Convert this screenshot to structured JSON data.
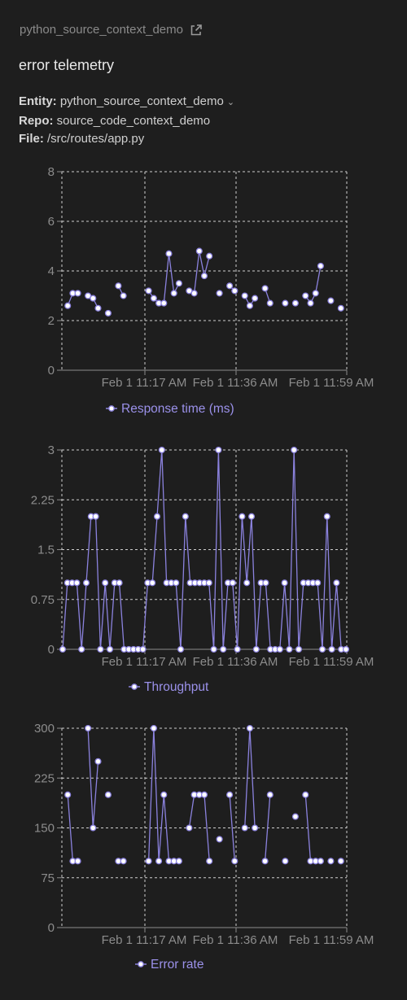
{
  "header": {
    "breadcrumb": "python_source_context_demo",
    "title": "error telemetry",
    "entity_label": "Entity:",
    "entity_value": "python_source_context_demo",
    "repo_label": "Repo:",
    "repo_value": "source_code_context_demo",
    "file_label": "File:",
    "file_value": "/src/routes/app.py"
  },
  "colors": {
    "series": "#8b82de",
    "grid": "#cfcfcf",
    "background": "#1e1e1e",
    "point_fill": "#ffffff"
  },
  "chart_data": [
    {
      "type": "line",
      "legend": "Response time (ms)",
      "x_tick_labels": [
        "Feb 1 11:17 AM",
        "Feb 1 11:36 AM",
        "Feb 1 11:59 AM"
      ],
      "ylim": [
        0,
        8
      ],
      "yticks": [
        0,
        2,
        4,
        6,
        8
      ],
      "grid": true,
      "legend_position": "bottom",
      "series": [
        {
          "values": [
            null,
            2.6,
            3.1,
            3.1,
            null,
            3.0,
            2.9,
            2.5,
            null,
            2.3,
            null,
            3.4,
            3.0,
            null,
            null,
            null,
            null,
            3.2,
            2.9,
            2.7,
            2.7,
            4.7,
            3.1,
            3.5,
            null,
            3.2,
            3.1,
            4.8,
            3.8,
            4.6,
            null,
            3.1,
            null,
            3.4,
            3.2,
            null,
            3.0,
            2.6,
            2.9,
            null,
            3.3,
            2.7,
            null,
            null,
            2.7,
            null,
            2.7,
            null,
            3.0,
            2.7,
            3.1,
            4.2,
            null,
            2.8,
            null,
            2.5,
            null
          ]
        }
      ]
    },
    {
      "type": "line",
      "legend": "Throughput",
      "x_tick_labels": [
        "Feb 1 11:17 AM",
        "Feb 1 11:36 AM",
        "Feb 1 11:59 AM"
      ],
      "ylim": [
        0,
        3
      ],
      "yticks": [
        0,
        0.75,
        1.5,
        2.25,
        3
      ],
      "ytick_labels": [
        "0",
        "0.75",
        "1.5",
        "2.25",
        "3"
      ],
      "grid": true,
      "legend_position": "bottom",
      "series": [
        {
          "values": [
            0,
            1,
            1,
            1,
            0,
            1,
            2,
            2,
            0,
            1,
            0,
            1,
            1,
            0,
            0,
            0,
            0,
            0,
            1,
            1,
            2,
            3,
            1,
            1,
            1,
            0,
            2,
            1,
            1,
            1,
            1,
            1,
            0,
            3,
            0,
            1,
            1,
            0,
            2,
            1,
            2,
            0,
            1,
            1,
            0,
            0,
            0,
            1,
            0,
            3,
            0,
            1,
            1,
            1,
            1,
            0,
            2,
            0,
            1,
            0,
            0
          ]
        }
      ]
    },
    {
      "type": "line",
      "legend": "Error rate",
      "x_tick_labels": [
        "Feb 1 11:17 AM",
        "Feb 1 11:36 AM",
        "Feb 1 11:59 AM"
      ],
      "ylim": [
        0,
        300
      ],
      "yticks": [
        0,
        75,
        150,
        225,
        300
      ],
      "grid": true,
      "legend_position": "bottom",
      "series": [
        {
          "values": [
            null,
            200,
            100,
            100,
            null,
            300,
            150,
            250,
            null,
            200,
            null,
            100,
            100,
            null,
            null,
            null,
            null,
            100,
            300,
            100,
            200,
            100,
            100,
            100,
            null,
            150,
            200,
            200,
            200,
            100,
            null,
            133,
            null,
            200,
            100,
            null,
            150,
            300,
            150,
            null,
            100,
            200,
            null,
            null,
            100,
            null,
            167,
            null,
            200,
            100,
            100,
            100,
            null,
            100,
            null,
            100,
            null
          ]
        }
      ]
    }
  ]
}
